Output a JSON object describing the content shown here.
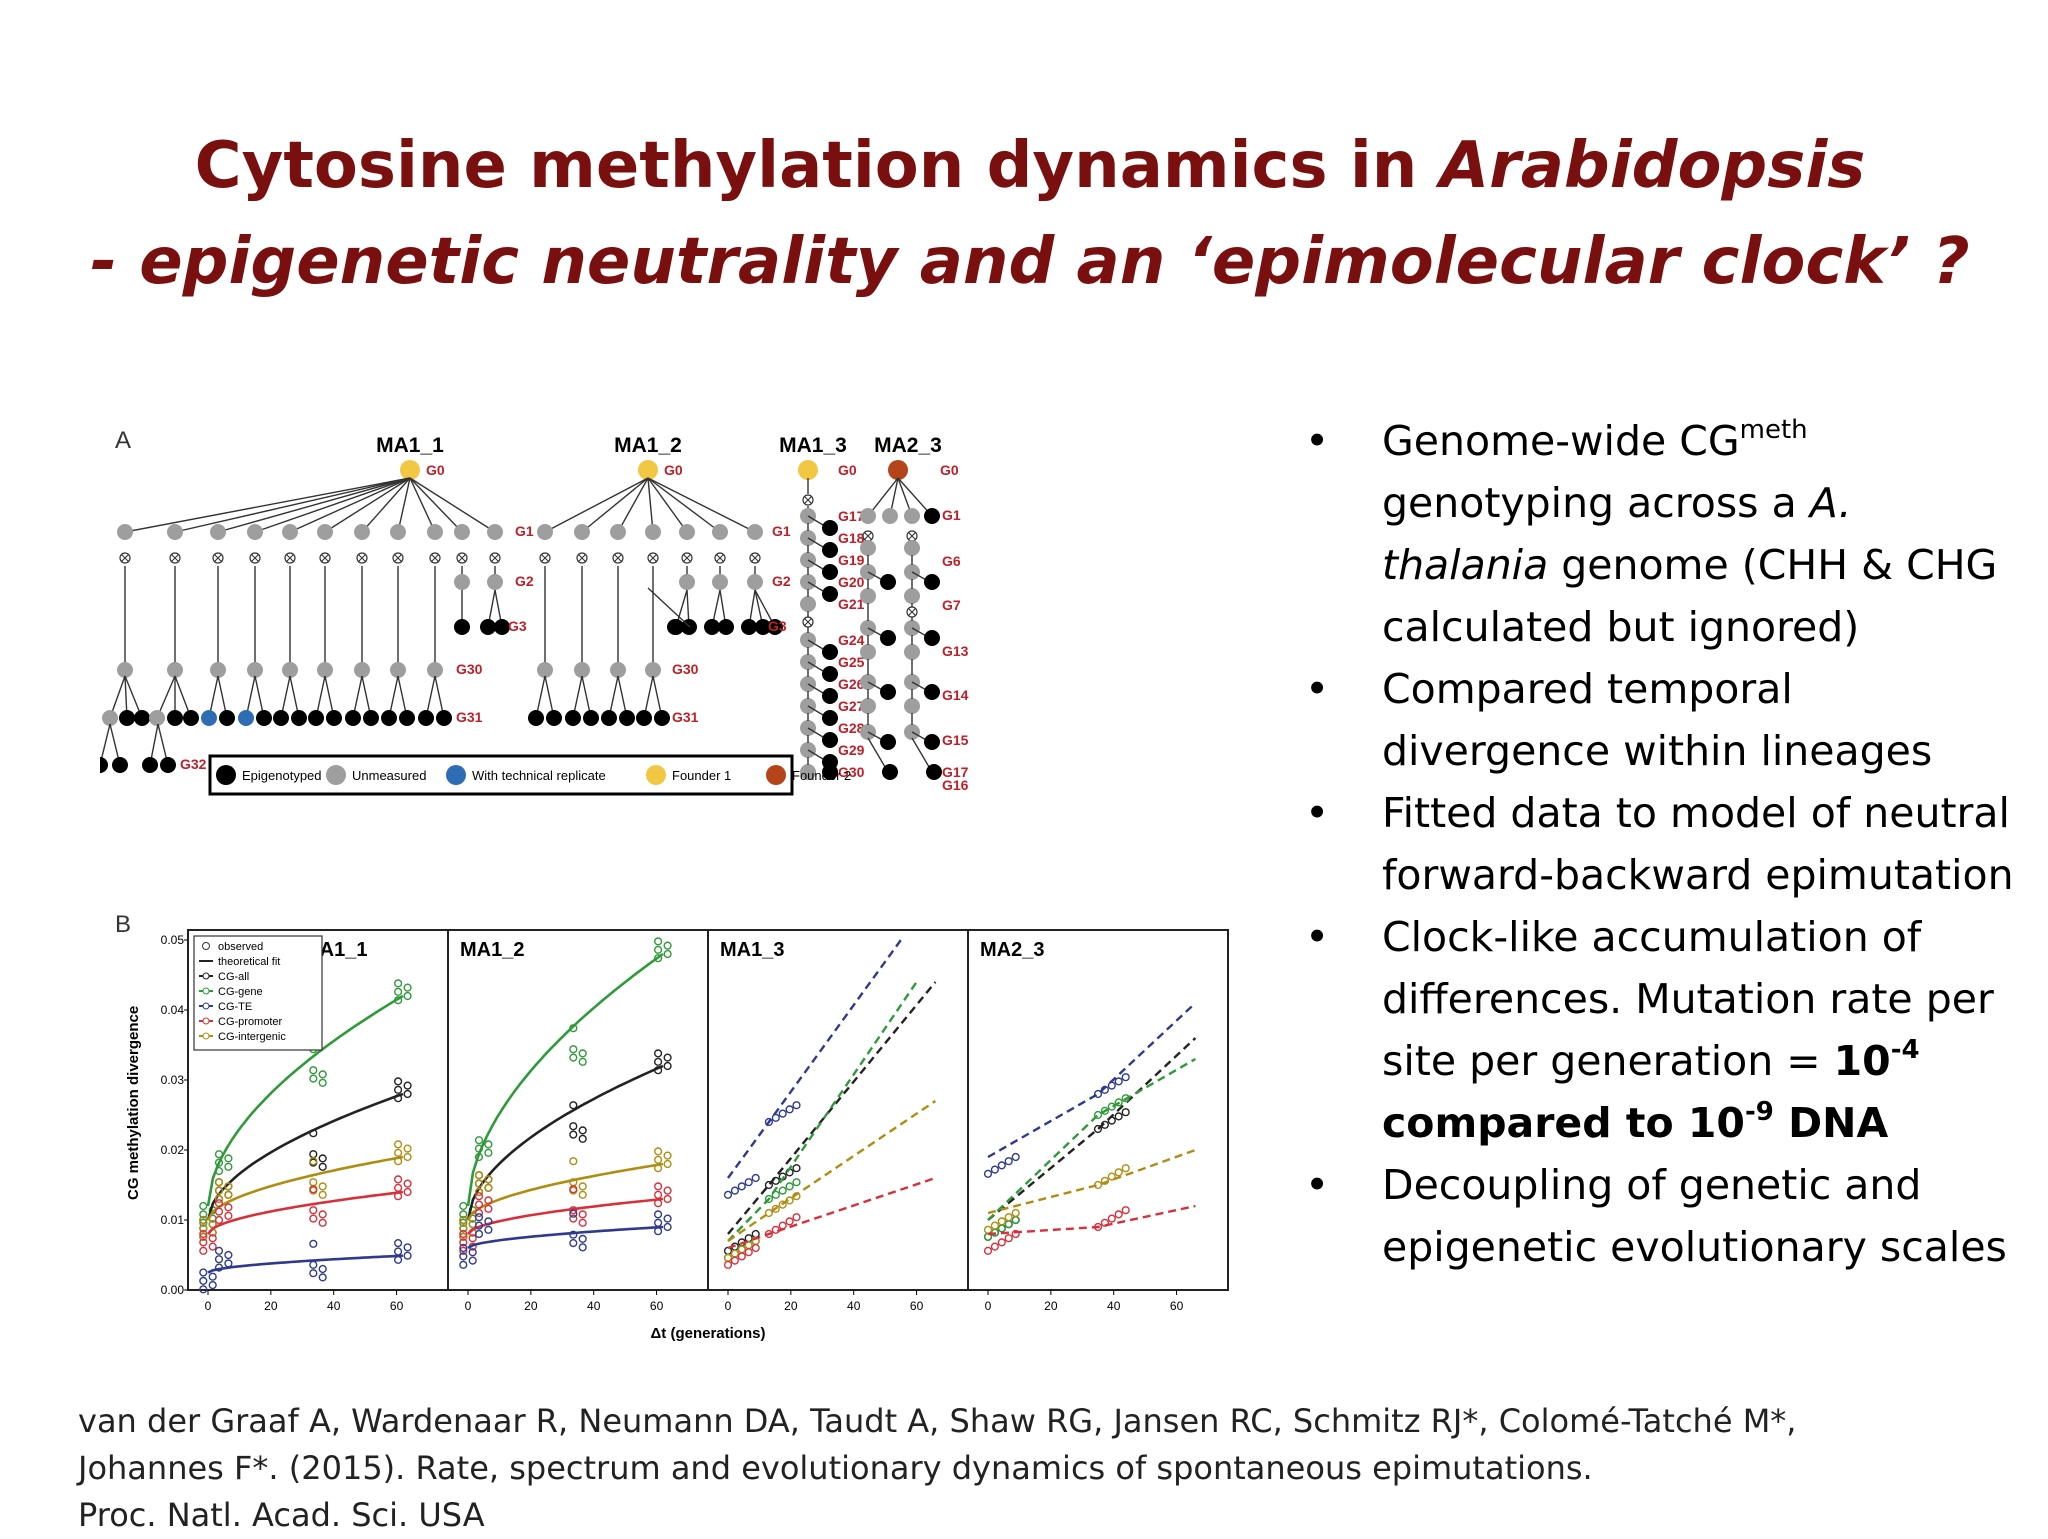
{
  "slide": {
    "title_line1_prefix": "Cytosine methylation dynamics in ",
    "title_line1_italic": "Arabidopsis",
    "title_line2": "- epigenetic neutrality and an ‘epimolecular clock’ ?"
  },
  "figure": {
    "panel_a_letter": "A",
    "panel_b_letter": "B",
    "lineages": [
      "MA1_1",
      "MA1_2",
      "MA1_3",
      "MA2_3"
    ],
    "generation_labels": {
      "ma1_1": [
        "G0",
        "G1",
        "G2",
        "G3",
        "G30",
        "G31",
        "G32"
      ],
      "ma1_2": [
        "G0",
        "G1",
        "G2",
        "G3",
        "G30",
        "G31"
      ],
      "ma1_3": [
        "G0",
        "G17",
        "G18",
        "G19",
        "G20",
        "G21",
        "G24",
        "G25",
        "G26",
        "G27",
        "G28",
        "G29",
        "G30"
      ],
      "ma2_3": [
        "G0",
        "G1",
        "G6",
        "G7",
        "G13",
        "G14",
        "G15",
        "G16",
        "G17"
      ]
    },
    "legend_a": [
      {
        "label": "Epigenotyped",
        "color": "#000000"
      },
      {
        "label": "Unmeasured",
        "color": "#9e9e9e"
      },
      {
        "label": "With technical replicate",
        "color": "#2e6db4"
      },
      {
        "label": "Founder 1",
        "color": "#f2c744"
      },
      {
        "label": "Founder 2",
        "color": "#b5441b"
      }
    ],
    "panel_b_legend": [
      "observed",
      "theoretical fit",
      "CG-all",
      "CG-gene",
      "CG-TE",
      "CG-promoter",
      "CG-intergenic"
    ],
    "colors": {
      "title": "#7a0f0f",
      "gen_label": "#c0202a",
      "cg_all": "#222222",
      "cg_gene": "#2f9a3a",
      "cg_te": "#2f3a8f",
      "cg_promoter": "#d8303a",
      "cg_intergenic": "#b08d12"
    }
  },
  "chart_data": {
    "type": "scatter",
    "xlabel": "Δt (generations)",
    "ylabel": "CG methylation divergence",
    "xlim": [
      0,
      70
    ],
    "ylim": [
      0,
      0.05
    ],
    "x_ticks": [
      "0",
      "20",
      "40",
      "60"
    ],
    "y_ticks": [
      "0.00",
      "0.01",
      "0.02",
      "0.03",
      "0.04",
      "0.05"
    ],
    "panels": [
      {
        "name": "MA1_1",
        "series": [
          {
            "name": "CG-gene",
            "x": [
              0,
              5,
              35,
              62
            ],
            "y": [
              0.012,
              0.017,
              0.032,
              0.042
            ]
          },
          {
            "name": "CG-all",
            "x": [
              0,
              5,
              35,
              62
            ],
            "y": [
              0.01,
              0.013,
              0.02,
              0.028
            ]
          },
          {
            "name": "CG-intergenic",
            "x": [
              0,
              5,
              35,
              62
            ],
            "y": [
              0.01,
              0.013,
              0.016,
              0.019
            ]
          },
          {
            "name": "CG-promoter",
            "x": [
              0,
              5,
              35,
              62
            ],
            "y": [
              0.008,
              0.01,
              0.012,
              0.014
            ]
          },
          {
            "name": "CG-TE",
            "x": [
              0,
              5,
              35,
              62
            ],
            "y": [
              0.0025,
              0.0032,
              0.0042,
              0.0049
            ]
          }
        ]
      },
      {
        "name": "MA1_2",
        "series": [
          {
            "name": "CG-gene",
            "x": [
              0,
              5,
              35,
              62
            ],
            "y": [
              0.012,
              0.019,
              0.035,
              0.048
            ]
          },
          {
            "name": "CG-all",
            "x": [
              0,
              5,
              35,
              62
            ],
            "y": [
              0.01,
              0.014,
              0.024,
              0.032
            ]
          },
          {
            "name": "CG-intergenic",
            "x": [
              0,
              5,
              35,
              62
            ],
            "y": [
              0.01,
              0.014,
              0.016,
              0.018
            ]
          },
          {
            "name": "CG-promoter",
            "x": [
              0,
              5,
              35,
              62
            ],
            "y": [
              0.008,
              0.011,
              0.012,
              0.013
            ]
          },
          {
            "name": "CG-TE",
            "x": [
              0,
              5,
              35,
              62
            ],
            "y": [
              0.006,
              0.008,
              0.0085,
              0.009
            ]
          }
        ]
      },
      {
        "name": "MA1_3",
        "series": [
          {
            "name": "CG-TE",
            "x": [
              0,
              13,
              55
            ],
            "y": [
              0.016,
              0.024,
              0.05
            ]
          },
          {
            "name": "CG-all",
            "x": [
              0,
              13,
              66
            ],
            "y": [
              0.008,
              0.015,
              0.044
            ]
          },
          {
            "name": "CG-gene",
            "x": [
              0,
              13,
              60
            ],
            "y": [
              0.007,
              0.013,
              0.044
            ]
          },
          {
            "name": "CG-intergenic",
            "x": [
              0,
              13,
              66
            ],
            "y": [
              0.007,
              0.011,
              0.027
            ]
          },
          {
            "name": "CG-promoter",
            "x": [
              0,
              13,
              66
            ],
            "y": [
              0.006,
              0.008,
              0.016
            ]
          }
        ]
      },
      {
        "name": "MA2_3",
        "series": [
          {
            "name": "CG-TE",
            "x": [
              0,
              35,
              66
            ],
            "y": [
              0.019,
              0.028,
              0.041
            ]
          },
          {
            "name": "CG-all",
            "x": [
              0,
              35,
              66
            ],
            "y": [
              0.01,
              0.023,
              0.036
            ]
          },
          {
            "name": "CG-gene",
            "x": [
              0,
              35,
              66
            ],
            "y": [
              0.01,
              0.025,
              0.033
            ]
          },
          {
            "name": "CG-intergenic",
            "x": [
              0,
              35,
              66
            ],
            "y": [
              0.011,
              0.015,
              0.02
            ]
          },
          {
            "name": "CG-promoter",
            "x": [
              0,
              35,
              66
            ],
            "y": [
              0.008,
              0.009,
              0.012
            ]
          }
        ]
      }
    ]
  },
  "bullets": [
    {
      "parts": [
        "Genome-wide CG",
        "meth",
        " genotyping across a ",
        "A. thalania",
        " genome (CHH & CHG calculated but ignored)"
      ]
    },
    {
      "text": "Compared temporal divergence within lineages"
    },
    {
      "text": "Fitted data to model of neutral forward-backward epimutation"
    },
    {
      "parts": [
        "Clock-like accumulation of differences. Mutation rate per site per generation = ",
        "10",
        "-4",
        " compared to 10",
        "-9",
        " DNA"
      ]
    },
    {
      "text": "Decoupling of genetic and epigenetic evolutionary scales"
    }
  ],
  "citation": {
    "line1": "van der Graaf A, Wardenaar R, Neumann DA, Taudt A, Shaw RG, Jansen RC, Schmitz RJ*, Colomé-Tatché M*,",
    "line2": "Johannes F*. (2015). Rate, spectrum and evolutionary dynamics of spontaneous epimutations.",
    "line3": "Proc. Natl. Acad. Sci. USA"
  }
}
